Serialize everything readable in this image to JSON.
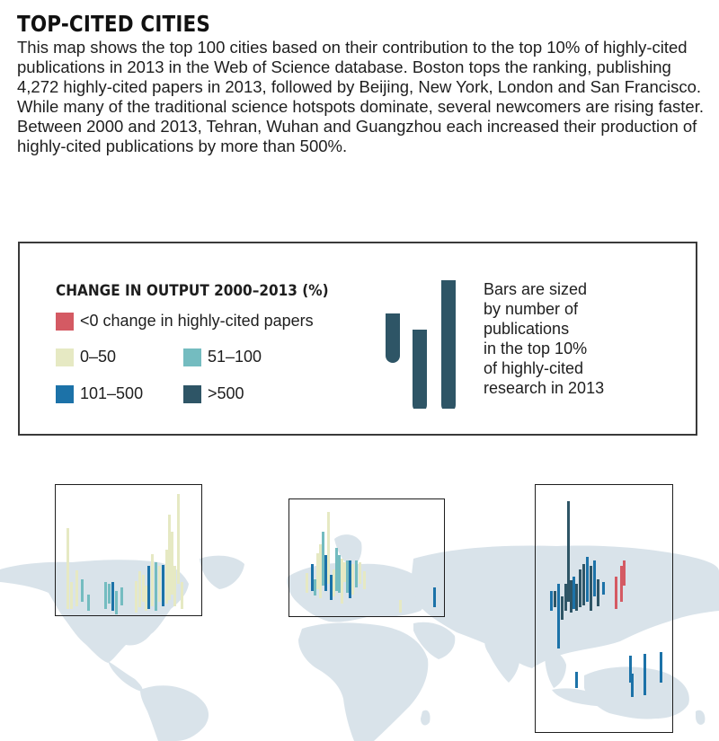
{
  "title": "TOP-CITED CITIES",
  "intro": "This map shows the top 100 cities based on their contribution to the top 10% of highly-cited publications in 2013 in the Web of Science database. Boston tops the ranking, publishing 4,272 highly-cited papers in 2013, followed by Beijing, New York, London and San Francisco. While many of the traditional science hotspots dominate, several newcomers are rising faster. Between 2000 and 2013, Tehran, Wuhan and Guangzhou each increased their production of highly-cited publications by more than 500%.",
  "legend": {
    "title": "CHANGE IN OUTPUT 2000–2013 (%)",
    "items": [
      {
        "label": "<0 change in highly-cited papers",
        "color": "#d45a63"
      },
      {
        "label": "0–50",
        "color": "#e6e9c3"
      },
      {
        "label": "51–100",
        "color": "#74bcc0"
      },
      {
        "label": "101–500",
        "color": "#1c72a8"
      },
      {
        "label": ">500",
        "color": "#2e5566"
      }
    ],
    "size_note": [
      "Bars are sized",
      "by number of",
      "publications",
      "in the top 10%",
      "of highly-cited",
      "research in 2013"
    ]
  },
  "colors": {
    "land": "#d9e3ea",
    "frame": "#1e1e1e",
    "legend_bar": "#2e5566"
  },
  "insets": [
    "north-america",
    "europe",
    "east-asia-oceania"
  ]
}
